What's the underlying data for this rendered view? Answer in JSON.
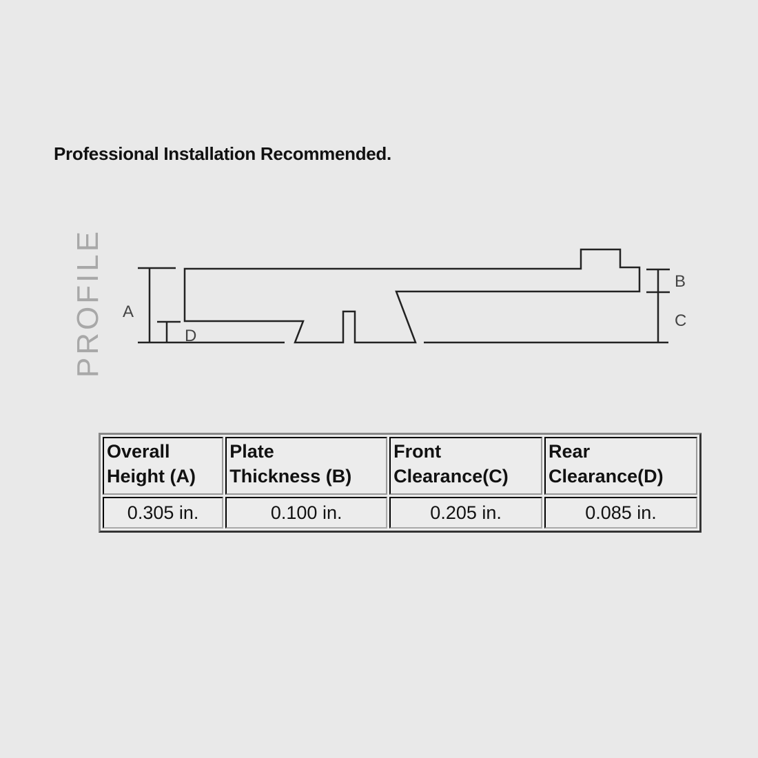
{
  "heading": "Professional Installation Recommended.",
  "profile_label": "PROFILE",
  "diagram_labels": {
    "a": "A",
    "b": "B",
    "c": "C",
    "d": "D"
  },
  "table": {
    "headers": [
      [
        "Overall",
        "Height (A)"
      ],
      [
        "Plate",
        "Thickness (B)"
      ],
      [
        "Front",
        "Clearance(C)"
      ],
      [
        "Rear",
        "Clearance(D)"
      ]
    ],
    "values": [
      "0.305 in.",
      "0.100 in.",
      "0.205 in.",
      "0.085 in."
    ]
  }
}
